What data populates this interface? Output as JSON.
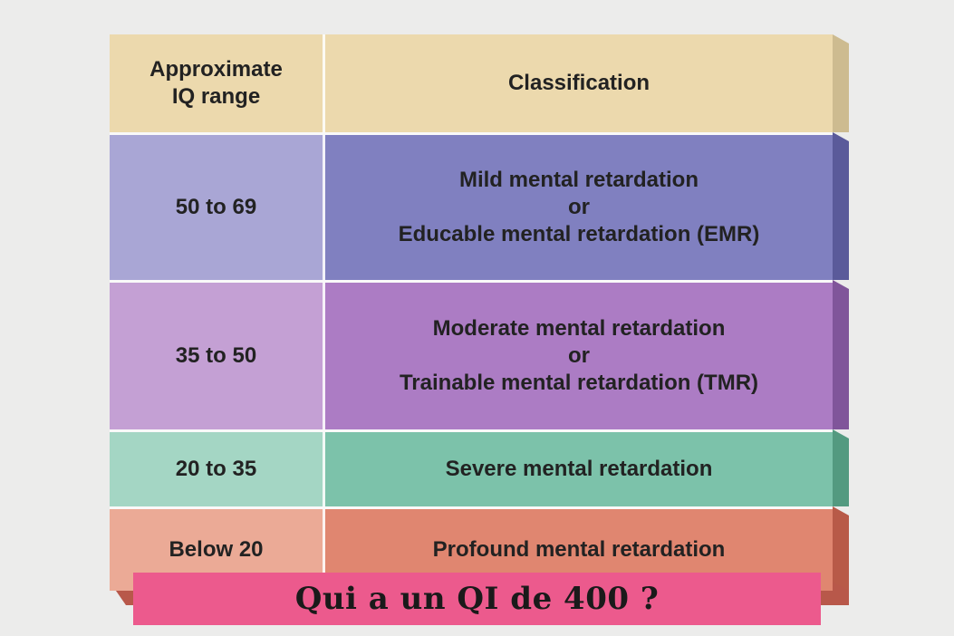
{
  "table": {
    "header": {
      "range_line1": "Approximate",
      "range_line2": "IQ range",
      "classification": "Classification"
    },
    "rows": [
      {
        "range": "50 to 69",
        "line1": "Mild mental retardation",
        "line2": "or",
        "line3": "Educable mental retardation (EMR)"
      },
      {
        "range": "35 to 50",
        "line1": "Moderate mental retardation",
        "line2": "or",
        "line3": "Trainable mental retardation (TMR)"
      },
      {
        "range": "20 to 35",
        "line1": "Severe mental retardation"
      },
      {
        "range": "Below 20",
        "line1": "Profound mental retardation"
      }
    ]
  },
  "banner": {
    "text": "Qui a un QI de 400 ?"
  },
  "colors": {
    "header": "#ecd9ad",
    "mild": "#8080c0",
    "moderate": "#ac7cc4",
    "severe": "#7cc2aa",
    "profound": "#e08670",
    "banner": "#ec5a8d"
  }
}
